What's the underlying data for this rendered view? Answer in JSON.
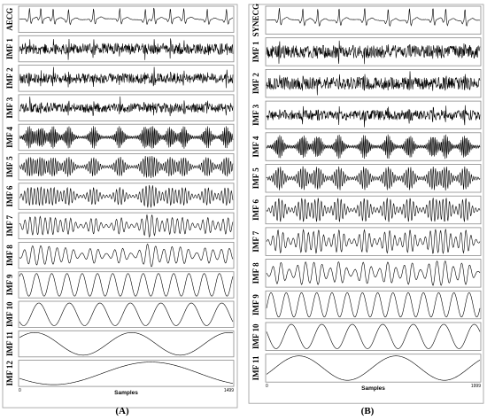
{
  "panels": [
    {
      "letter": "(A)",
      "rows": [
        "AECG",
        "IMF 1",
        "IMF 2",
        "IMF 3",
        "IMF 4",
        "IMF 5",
        "IMF 6",
        "IMF 7",
        "IMF 8",
        "IMF 9",
        "IMF 10",
        "IMF 11",
        "IMF 12"
      ],
      "xlabel": "Samples",
      "xticks": [
        "0",
        "1499"
      ]
    },
    {
      "letter": "(B)",
      "rows": [
        "SYNECG",
        "IMF 1",
        "IMF 2",
        "IMF 3",
        "IMF 4",
        "IMF 5",
        "IMF 6",
        "IMF 7",
        "IMF 8",
        "IMF 9",
        "IMF 10",
        "IMF 11"
      ],
      "xlabel": "Samples",
      "xticks": [
        "0",
        "1999"
      ]
    }
  ],
  "chart_data": [
    {
      "type": "line",
      "title": "",
      "xlabel": "Samples",
      "xlim": [
        0,
        1499
      ],
      "series": [
        {
          "name": "AECG"
        },
        {
          "name": "IMF 1"
        },
        {
          "name": "IMF 2"
        },
        {
          "name": "IMF 3"
        },
        {
          "name": "IMF 4"
        },
        {
          "name": "IMF 5"
        },
        {
          "name": "IMF 6"
        },
        {
          "name": "IMF 7"
        },
        {
          "name": "IMF 8"
        },
        {
          "name": "IMF 9"
        },
        {
          "name": "IMF 10"
        },
        {
          "name": "IMF 11"
        },
        {
          "name": "IMF 12"
        }
      ],
      "beat_positions": [
        0.047,
        0.1,
        0.158,
        0.23,
        0.347,
        0.47,
        0.59,
        0.63,
        0.707,
        0.77,
        0.88,
        0.97
      ]
    },
    {
      "type": "line",
      "title": "",
      "xlabel": "Samples",
      "xlim": [
        0,
        1999
      ],
      "series": [
        {
          "name": "SYNECG"
        },
        {
          "name": "IMF 1"
        },
        {
          "name": "IMF 2"
        },
        {
          "name": "IMF 3"
        },
        {
          "name": "IMF 4"
        },
        {
          "name": "IMF 5"
        },
        {
          "name": "IMF 6"
        },
        {
          "name": "IMF 7"
        },
        {
          "name": "IMF 8"
        },
        {
          "name": "IMF 9"
        },
        {
          "name": "IMF 10"
        },
        {
          "name": "IMF 11"
        }
      ],
      "beat_positions": [
        0.06,
        0.17,
        0.24,
        0.34,
        0.46,
        0.57,
        0.67,
        0.78,
        0.84,
        0.93
      ]
    }
  ],
  "colors": {
    "line": "#000000",
    "frame": "#888888",
    "background": "#ffffff"
  }
}
